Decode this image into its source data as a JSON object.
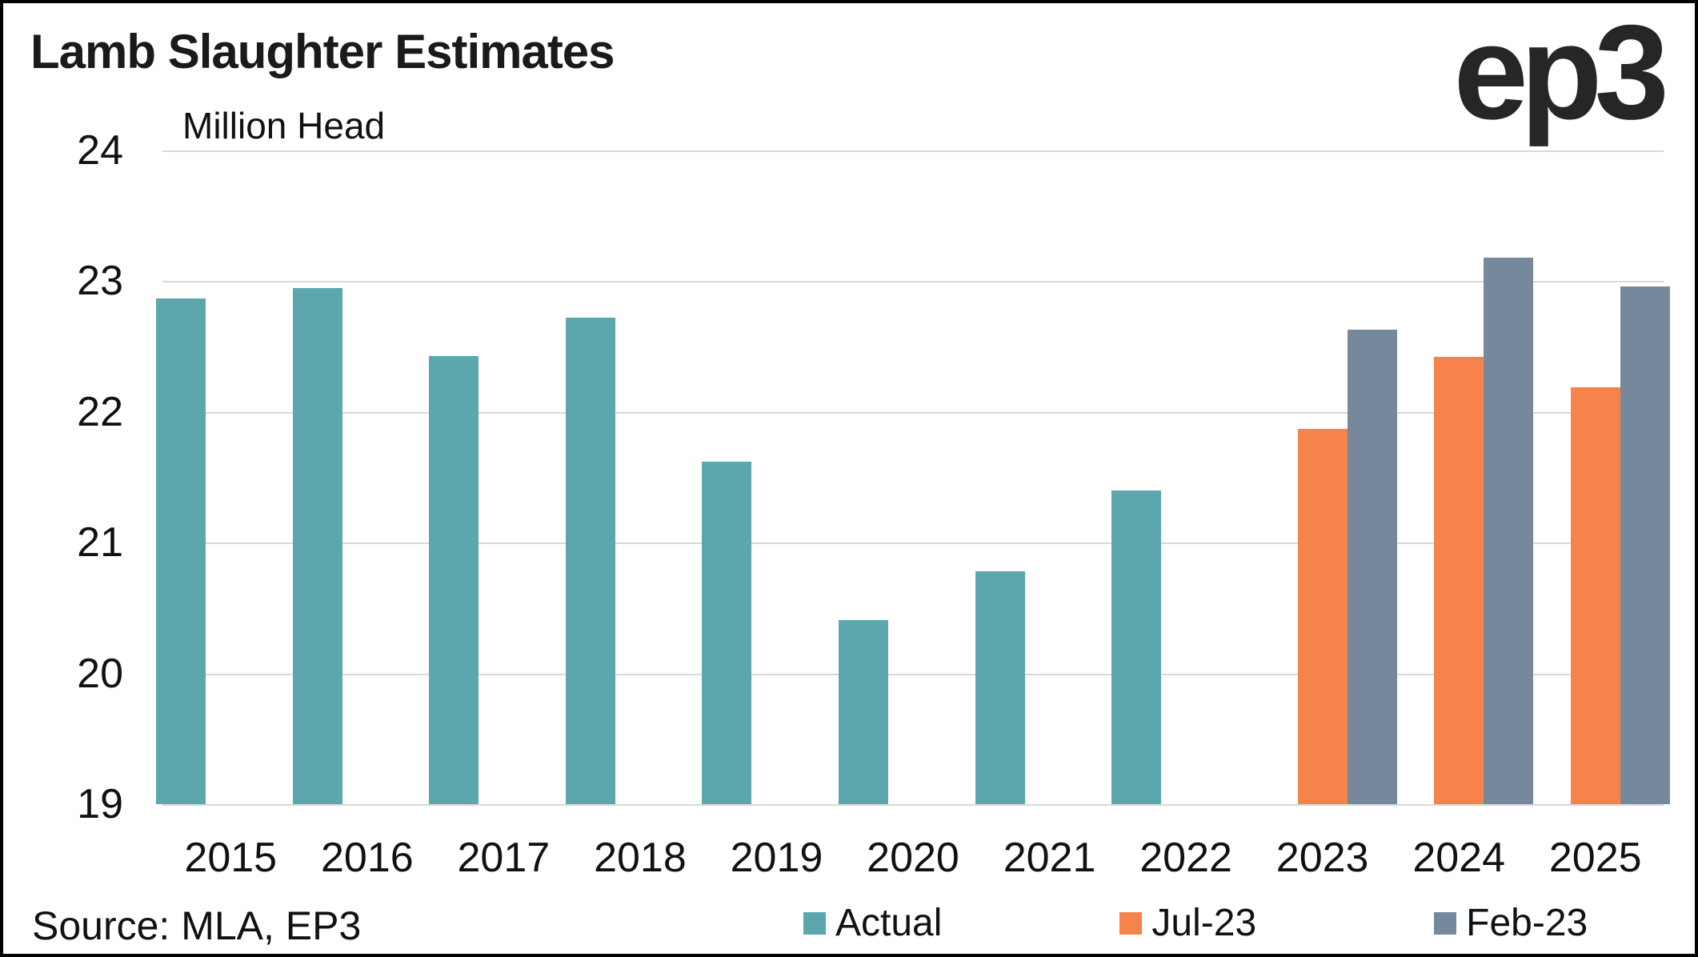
{
  "logo": {
    "text": "ep3"
  },
  "source": "Source: MLA, EP3",
  "chart_data": {
    "type": "bar",
    "title": "Lamb Slaughter Estimates",
    "unit_label": "Million Head",
    "xlabel": "",
    "ylabel": "Million Head",
    "categories": [
      "2015",
      "2016",
      "2017",
      "2018",
      "2019",
      "2020",
      "2021",
      "2022",
      "2023",
      "2024",
      "2025"
    ],
    "series": [
      {
        "name": "Actual",
        "color": "#5CA7AD",
        "values": [
          22.87,
          22.95,
          22.43,
          22.72,
          21.62,
          20.41,
          20.78,
          21.4,
          null,
          null,
          null
        ]
      },
      {
        "name": "Jul-23",
        "color": "#F5834A",
        "values": [
          null,
          null,
          null,
          null,
          null,
          null,
          null,
          null,
          21.87,
          22.42,
          22.19
        ]
      },
      {
        "name": "Feb-23",
        "color": "#76899C",
        "values": [
          null,
          null,
          null,
          null,
          null,
          null,
          null,
          null,
          22.63,
          23.18,
          22.96
        ]
      }
    ],
    "ylim": [
      19,
      24
    ],
    "yticks": [
      24,
      23,
      22,
      21,
      20,
      19
    ],
    "grid": true,
    "legend_position": "bottom"
  }
}
